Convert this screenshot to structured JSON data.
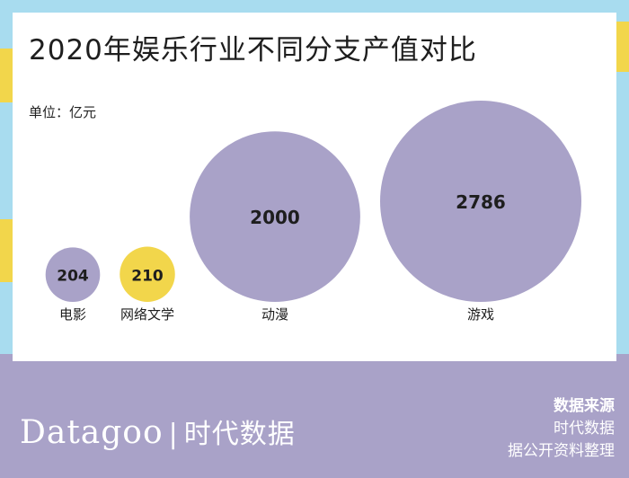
{
  "chart_data": {
    "type": "bubble",
    "title": "2020年娱乐行业不同分支产值对比",
    "unit_label": "单位：亿元",
    "categories": [
      "电影",
      "网络文学",
      "动漫",
      "游戏"
    ],
    "values": [
      204,
      210,
      2000,
      2786
    ],
    "colors": [
      "#a9a2c8",
      "#f2d64b",
      "#a9a2c8",
      "#a9a2c8"
    ]
  },
  "footer": {
    "brand_latin": "Datagoo",
    "separator": "|",
    "brand_cn": "时代数据",
    "source_head": "数据来源",
    "source_line1": "时代数据",
    "source_line2": "据公开资料整理"
  },
  "colors": {
    "accent_purple": "#a9a2c8",
    "accent_yellow": "#f2d64b",
    "frame_blue": "#a8dcef"
  }
}
